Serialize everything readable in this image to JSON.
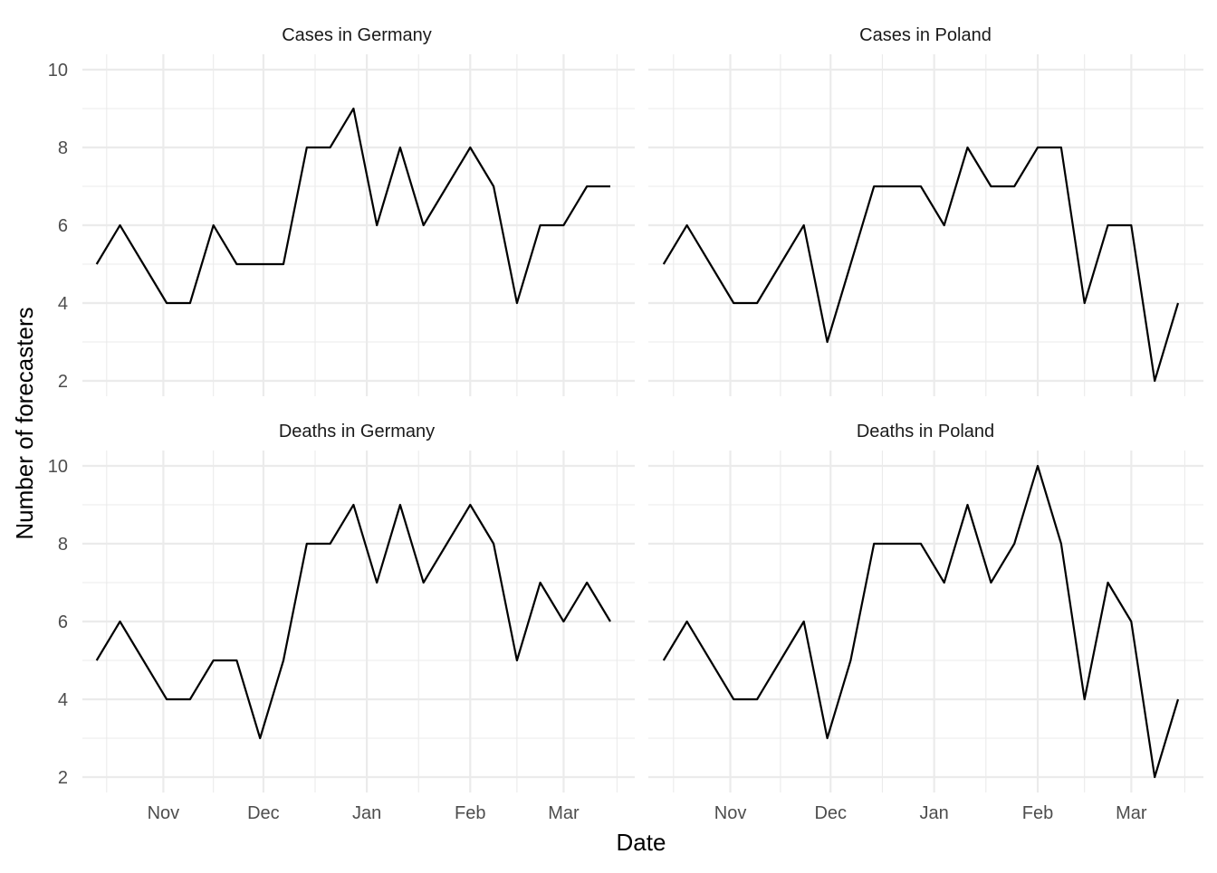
{
  "chart_data": {
    "type": "line",
    "xlabel": "Date",
    "ylabel": "Number of forecasters",
    "x_tick_labels": [
      "Nov",
      "Dec",
      "Jan",
      "Feb",
      "Mar"
    ],
    "y_ticks": [
      2,
      4,
      6,
      8,
      10
    ],
    "grid": true,
    "line_color": "#000000",
    "grid_color": "#ebebeb",
    "panels": [
      {
        "title": "Cases in Germany",
        "dates": [
          "2020-10-12",
          "2020-10-19",
          "2020-10-26",
          "2020-11-02",
          "2020-11-09",
          "2020-11-16",
          "2020-11-23",
          "2020-11-30",
          "2020-12-07",
          "2020-12-14",
          "2020-12-21",
          "2020-12-28",
          "2021-01-04",
          "2021-01-11",
          "2021-01-18",
          "2021-01-25",
          "2021-02-01",
          "2021-02-08",
          "2021-02-15",
          "2021-02-22",
          "2021-03-01",
          "2021-03-08",
          "2021-03-15"
        ],
        "values": [
          5,
          6,
          5,
          4,
          4,
          6,
          5,
          5,
          5,
          8,
          8,
          9,
          6,
          8,
          6,
          7,
          8,
          7,
          4,
          6,
          6,
          7,
          7
        ]
      },
      {
        "title": "Cases in Poland",
        "dates": [
          "2020-10-12",
          "2020-10-19",
          "2020-10-26",
          "2020-11-02",
          "2020-11-09",
          "2020-11-16",
          "2020-11-23",
          "2020-11-30",
          "2020-12-07",
          "2020-12-14",
          "2020-12-21",
          "2020-12-28",
          "2021-01-04",
          "2021-01-11",
          "2021-01-18",
          "2021-01-25",
          "2021-02-01",
          "2021-02-08",
          "2021-02-15",
          "2021-02-22",
          "2021-03-01",
          "2021-03-08",
          "2021-03-15"
        ],
        "values": [
          5,
          6,
          5,
          4,
          4,
          5,
          6,
          3,
          5,
          7,
          7,
          7,
          6,
          8,
          7,
          7,
          8,
          8,
          4,
          6,
          6,
          2,
          4
        ]
      },
      {
        "title": "Deaths in Germany",
        "dates": [
          "2020-10-12",
          "2020-10-19",
          "2020-10-26",
          "2020-11-02",
          "2020-11-09",
          "2020-11-16",
          "2020-11-23",
          "2020-11-30",
          "2020-12-07",
          "2020-12-14",
          "2020-12-21",
          "2020-12-28",
          "2021-01-04",
          "2021-01-11",
          "2021-01-18",
          "2021-01-25",
          "2021-02-01",
          "2021-02-08",
          "2021-02-15",
          "2021-02-22",
          "2021-03-01",
          "2021-03-08",
          "2021-03-15"
        ],
        "values": [
          5,
          6,
          5,
          4,
          4,
          5,
          5,
          3,
          5,
          8,
          8,
          9,
          7,
          9,
          7,
          8,
          9,
          8,
          5,
          7,
          6,
          7,
          6
        ]
      },
      {
        "title": "Deaths in Poland",
        "dates": [
          "2020-10-12",
          "2020-10-19",
          "2020-10-26",
          "2020-11-02",
          "2020-11-09",
          "2020-11-16",
          "2020-11-23",
          "2020-11-30",
          "2020-12-07",
          "2020-12-14",
          "2020-12-21",
          "2020-12-28",
          "2021-01-04",
          "2021-01-11",
          "2021-01-18",
          "2021-01-25",
          "2021-02-01",
          "2021-02-08",
          "2021-02-15",
          "2021-02-22",
          "2021-03-01",
          "2021-03-08",
          "2021-03-15"
        ],
        "values": [
          5,
          6,
          5,
          4,
          4,
          5,
          6,
          3,
          5,
          8,
          8,
          8,
          7,
          9,
          7,
          8,
          10,
          8,
          4,
          7,
          6,
          2,
          4
        ]
      }
    ]
  }
}
